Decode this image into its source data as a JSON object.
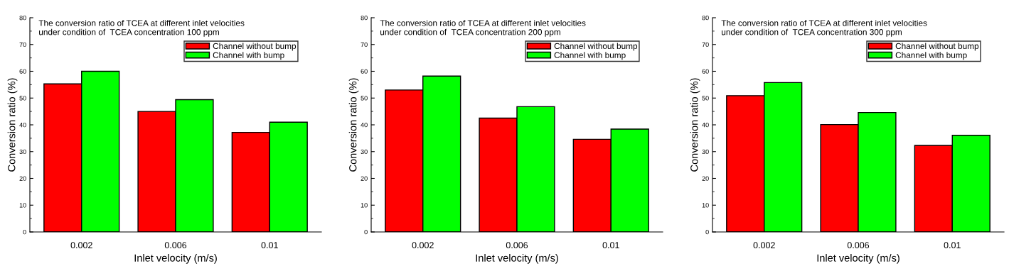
{
  "chart_data": [
    {
      "type": "bar",
      "title": "The conversion ratio of TCEA at different inlet velocities\nunder condition of  TCEA concentration 100 ppm",
      "xlabel": "Inlet velocity (m/s)",
      "ylabel": "Conversion ratio (%)",
      "categories": [
        "0.002",
        "0.006",
        "0.01"
      ],
      "series": [
        {
          "name": "Channel without bump",
          "color": "#ff0000",
          "values": [
            55.3,
            45.0,
            37.2
          ]
        },
        {
          "name": "Channel with bump",
          "color": "#00ff00",
          "values": [
            60.0,
            49.4,
            41.0
          ]
        }
      ],
      "ylim": [
        0,
        80
      ],
      "yticks": [
        0,
        10,
        20,
        30,
        40,
        50,
        60,
        70,
        80
      ],
      "legend": "top right",
      "grid": false
    },
    {
      "type": "bar",
      "title": "The conversion ratio of TCEA at different inlet velocities\nunder condition of  TCEA concentration 200 ppm",
      "xlabel": "Inlet velocity (m/s)",
      "ylabel": "Conversion ratio (%)",
      "categories": [
        "0.002",
        "0.006",
        "0.01"
      ],
      "series": [
        {
          "name": "Channel without bump",
          "color": "#ff0000",
          "values": [
            53.0,
            42.5,
            34.6
          ]
        },
        {
          "name": "Channel with bump",
          "color": "#00ff00",
          "values": [
            58.2,
            46.8,
            38.4
          ]
        }
      ],
      "ylim": [
        0,
        80
      ],
      "yticks": [
        0,
        10,
        20,
        30,
        40,
        50,
        60,
        70,
        80
      ],
      "legend": "top right",
      "grid": false
    },
    {
      "type": "bar",
      "title": "The conversion ratio of TCEA at different inlet velocities\nunder condition of  TCEA concentration 300 ppm",
      "xlabel": "Inlet velocity (m/s)",
      "ylabel": "Conversion ratio (%)",
      "categories": [
        "0.002",
        "0.006",
        "0.01"
      ],
      "series": [
        {
          "name": "Channel without bump",
          "color": "#ff0000",
          "values": [
            50.9,
            40.1,
            32.3
          ]
        },
        {
          "name": "Channel with bump",
          "color": "#00ff00",
          "values": [
            55.8,
            44.6,
            36.1
          ]
        }
      ],
      "ylim": [
        0,
        80
      ],
      "yticks": [
        0,
        10,
        20,
        30,
        40,
        50,
        60,
        70,
        80
      ],
      "legend": "top right",
      "grid": false
    }
  ]
}
